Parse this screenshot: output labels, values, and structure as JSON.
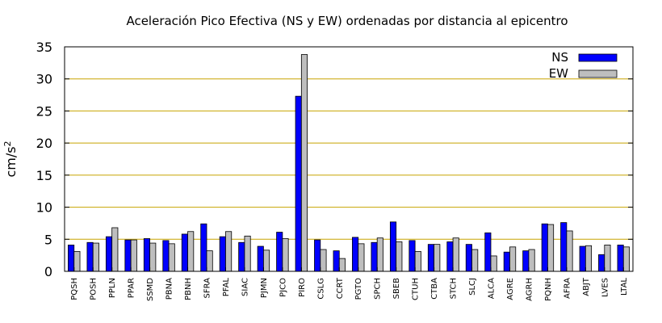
{
  "chart_data": {
    "type": "bar",
    "title": "Aceleración Pico Efectiva (NS y EW) ordenadas por distancia al epicentro",
    "ylabel_base": "cm/s",
    "ylabel_exp": "2",
    "xlabel": "",
    "ylim": [
      0,
      35
    ],
    "yticks": [
      "0",
      "5",
      "10",
      "15",
      "20",
      "25",
      "30",
      "35"
    ],
    "grid": "horizontal",
    "legend_position": "top-right",
    "categories": [
      "PQSH",
      "POSH",
      "PPLN",
      "PPAR",
      "SSMD",
      "PBNA",
      "PBNH",
      "SFRA",
      "PFAL",
      "SIAC",
      "PJMN",
      "PJCO",
      "PIRO",
      "CSLG",
      "CCRT",
      "PGTO",
      "SPCH",
      "SBEB",
      "CTUH",
      "CTBA",
      "STCH",
      "SLCJ",
      "ALCA",
      "AGRE",
      "AGRH",
      "PQNH",
      "AFRA",
      "ABJT",
      "LVES",
      "LTAL"
    ],
    "series": [
      {
        "name": "NS",
        "color": "#0000ff",
        "values": [
          4.1,
          4.5,
          5.4,
          4.9,
          5.1,
          4.8,
          5.8,
          7.4,
          5.4,
          4.5,
          3.9,
          6.1,
          27.3,
          4.9,
          3.2,
          5.3,
          4.5,
          7.7,
          4.8,
          4.2,
          4.6,
          4.2,
          6.0,
          3.0,
          3.2,
          7.4,
          7.6,
          3.9,
          2.6,
          4.1
        ]
      },
      {
        "name": "EW",
        "color": "#bebebe",
        "values": [
          3.1,
          4.4,
          6.8,
          4.9,
          4.4,
          4.3,
          6.2,
          3.2,
          6.2,
          5.5,
          3.3,
          5.1,
          33.8,
          3.4,
          2.0,
          4.3,
          5.2,
          4.6,
          3.1,
          4.2,
          5.2,
          3.4,
          2.4,
          3.8,
          3.4,
          7.3,
          6.3,
          4.0,
          4.1,
          3.8
        ]
      }
    ]
  },
  "colors": {
    "grid": "#c8a400",
    "axis": "#000000"
  }
}
